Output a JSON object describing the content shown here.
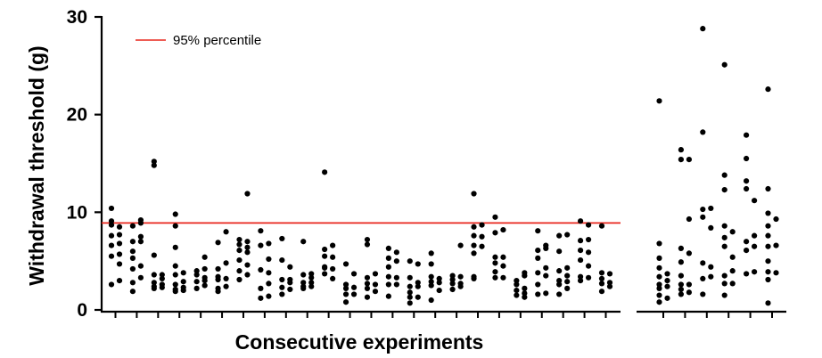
{
  "chart_data": {
    "type": "scatter",
    "title": "",
    "xlabel": "Consecutive experiments",
    "ylabel": "Withdrawal threshold (g)",
    "ylim": [
      0,
      30
    ],
    "yticks": [
      0,
      10,
      20,
      30
    ],
    "grid": false,
    "legend": {
      "position": "top-left",
      "entries": [
        "95% percentile"
      ]
    },
    "reference_line": {
      "name": "95% percentile",
      "value": 8.9,
      "color": "#e8261c"
    },
    "point_color": "#000000",
    "groups": [
      {
        "segment": 1,
        "columns": [
          [
            2.6,
            5.5,
            6.6,
            7.6,
            8.7,
            9.1,
            10.4
          ],
          [
            3.0,
            4.7,
            5.7,
            6.8,
            7.7,
            8.5
          ]
        ]
      },
      {
        "segment": 1,
        "columns": [
          [
            1.9,
            2.8,
            4.2,
            5.3,
            6.0,
            7.0,
            8.6
          ],
          [
            3.3,
            4.5,
            7.0,
            7.5,
            8.9,
            9.2
          ]
        ]
      },
      {
        "segment": 1,
        "columns": [
          [
            2.2,
            2.4,
            2.8,
            3.6,
            5.6,
            14.8,
            15.2
          ],
          [
            2.3,
            2.6,
            3.2,
            3.6
          ]
        ]
      },
      {
        "segment": 1,
        "columns": [
          [
            1.9,
            2.1,
            2.6,
            3.6,
            4.5,
            6.4,
            8.6,
            9.8
          ],
          [
            2.0,
            2.3,
            2.9,
            3.8
          ]
        ]
      },
      {
        "segment": 1,
        "columns": [
          [
            2.2,
            2.9,
            3.6,
            4.0
          ],
          [
            2.5,
            3.0,
            3.3,
            4.2,
            5.4
          ]
        ]
      },
      {
        "segment": 1,
        "columns": [
          [
            1.9,
            2.2,
            3.1,
            3.4,
            4.2,
            6.9
          ],
          [
            2.4,
            3.2,
            4.8,
            8.0
          ]
        ]
      },
      {
        "segment": 1,
        "columns": [
          [
            3.1,
            4.0,
            5.1,
            6.1,
            6.7,
            7.2
          ],
          [
            3.6,
            4.6,
            5.9,
            6.4,
            7.0,
            11.9
          ]
        ]
      },
      {
        "segment": 1,
        "columns": [
          [
            1.2,
            2.2,
            4.1,
            6.6,
            8.1
          ],
          [
            1.4,
            2.7,
            3.8,
            5.2,
            6.8
          ]
        ]
      },
      {
        "segment": 1,
        "columns": [
          [
            1.6,
            2.3,
            3.1,
            5.1,
            7.3
          ],
          [
            2.1,
            2.8,
            3.1,
            4.4
          ]
        ]
      },
      {
        "segment": 1,
        "columns": [
          [
            2.2,
            2.4,
            2.8,
            3.6,
            7.0
          ],
          [
            2.4,
            2.8,
            3.3,
            3.7
          ]
        ]
      },
      {
        "segment": 1,
        "columns": [
          [
            3.7,
            4.3,
            4.4,
            5.5,
            6.2,
            14.1
          ],
          [
            3.2,
            4.2,
            5.4,
            6.6
          ]
        ]
      },
      {
        "segment": 1,
        "columns": [
          [
            0.8,
            1.6,
            2.2,
            2.6,
            4.7
          ],
          [
            1.6,
            2.3,
            3.7
          ]
        ]
      },
      {
        "segment": 1,
        "columns": [
          [
            1.3,
            2.2,
            2.7,
            3.3,
            6.7,
            7.2
          ],
          [
            1.9,
            2.6,
            3.7
          ]
        ]
      },
      {
        "segment": 1,
        "columns": [
          [
            1.4,
            2.6,
            3.4,
            4.4,
            5.3,
            6.3
          ],
          [
            2.6,
            3.3,
            5.0,
            5.9
          ]
        ]
      },
      {
        "segment": 1,
        "columns": [
          [
            0.7,
            1.3,
            1.8,
            2.4,
            3.3,
            5.0
          ],
          [
            1.3,
            2.4,
            2.8,
            4.7
          ]
        ]
      },
      {
        "segment": 1,
        "columns": [
          [
            1.0,
            2.5,
            2.9,
            3.4,
            4.7,
            5.8
          ],
          [
            2.0,
            2.8,
            3.2
          ]
        ]
      },
      {
        "segment": 1,
        "columns": [
          [
            2.1,
            2.7,
            3.1,
            3.5
          ],
          [
            2.4,
            2.7,
            3.4,
            6.6
          ]
        ]
      },
      {
        "segment": 1,
        "columns": [
          [
            3.2,
            3.4,
            5.8,
            6.6,
            7.6,
            8.5,
            11.9
          ],
          [
            6.5,
            7.5,
            8.7
          ]
        ]
      },
      {
        "segment": 1,
        "columns": [
          [
            3.3,
            3.9,
            4.8,
            5.4,
            7.9,
            9.5
          ],
          [
            3.3,
            4.5,
            5.4,
            8.2
          ]
        ]
      },
      {
        "segment": 1,
        "columns": [
          [
            1.5,
            2.0,
            2.6,
            3.0
          ],
          [
            1.3,
            1.7,
            2.2,
            3.5,
            3.8
          ]
        ]
      },
      {
        "segment": 1,
        "columns": [
          [
            1.6,
            2.6,
            3.8,
            5.3,
            6.1,
            8.1
          ],
          [
            1.7,
            3.5,
            4.3,
            6.3,
            6.6
          ]
        ]
      },
      {
        "segment": 1,
        "columns": [
          [
            1.6,
            2.6,
            3.0,
            4.0,
            6.0,
            7.6
          ],
          [
            2.2,
            2.9,
            3.5,
            4.3,
            7.7
          ]
        ]
      },
      {
        "segment": 1,
        "columns": [
          [
            3.0,
            3.4,
            5.1,
            6.1,
            7.1,
            9.1
          ],
          [
            3.3,
            4.5,
            5.9,
            7.2,
            8.7
          ]
        ]
      },
      {
        "segment": 1,
        "columns": [
          [
            1.9,
            2.7,
            3.2,
            3.8,
            8.6
          ],
          [
            2.4,
            2.8,
            3.7
          ]
        ]
      },
      {
        "segment": 2,
        "columns": [
          [
            0.8,
            1.5,
            2.2,
            2.6,
            3.4,
            4.3,
            5.3,
            6.8,
            21.4
          ],
          [
            1.2,
            2.4,
            3.0,
            3.7
          ]
        ]
      },
      {
        "segment": 2,
        "columns": [
          [
            1.6,
            2.1,
            2.6,
            3.5,
            4.9,
            6.3,
            15.4,
            16.4
          ],
          [
            1.8,
            2.6,
            5.8,
            9.3,
            15.4
          ]
        ]
      },
      {
        "segment": 2,
        "columns": [
          [
            1.6,
            3.2,
            4.8,
            9.5,
            10.3,
            18.2,
            28.8
          ],
          [
            3.4,
            4.4,
            8.4,
            10.4
          ]
        ]
      },
      {
        "segment": 2,
        "columns": [
          [
            1.5,
            2.7,
            3.5,
            6.5,
            7.4,
            8.6,
            12.3,
            13.8,
            25.1
          ],
          [
            2.7,
            4.0,
            5.4,
            8.0
          ]
        ]
      },
      {
        "segment": 2,
        "columns": [
          [
            3.7,
            6.1,
            7.0,
            12.4,
            13.2,
            15.5,
            17.9
          ],
          [
            3.9,
            6.5,
            7.6,
            11.2
          ]
        ]
      },
      {
        "segment": 2,
        "columns": [
          [
            0.7,
            3.1,
            3.9,
            5.0,
            6.5,
            7.6,
            8.6,
            9.9,
            12.4,
            22.6
          ],
          [
            3.8,
            6.6,
            9.3
          ]
        ]
      }
    ]
  }
}
